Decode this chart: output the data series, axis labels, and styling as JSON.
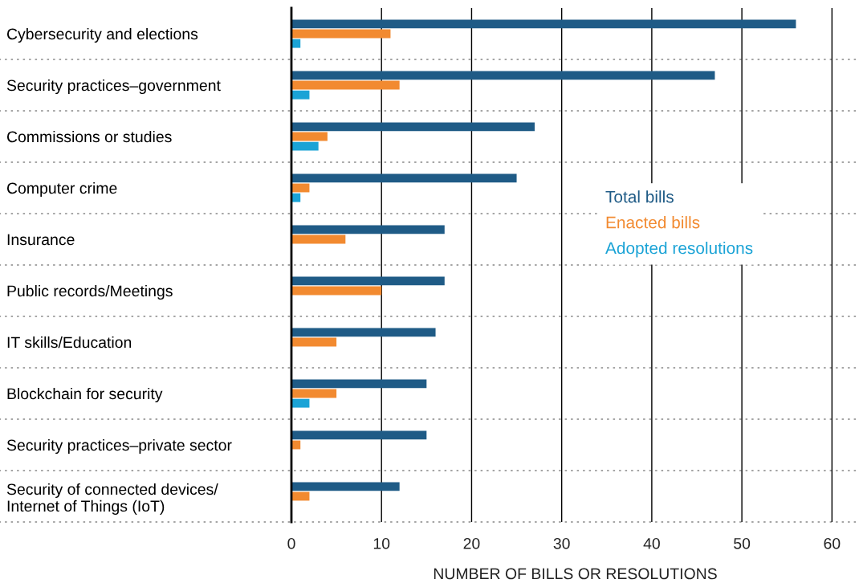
{
  "chart_data": {
    "type": "bar",
    "orientation": "horizontal",
    "categories": [
      "Cybersecurity and elections",
      "Security practices–government",
      "Commissions or studies",
      "Computer crime",
      "Insurance",
      "Public records/Meetings",
      "IT skills/Education",
      "Blockchain for security",
      "Security practices–private sector",
      "Security of connected devices/\nInternet of Things (IoT)"
    ],
    "series": [
      {
        "name": "Total bills",
        "color": "#1f5b86",
        "values": [
          56,
          47,
          27,
          25,
          17,
          17,
          16,
          15,
          15,
          12
        ]
      },
      {
        "name": "Enacted bills",
        "color": "#f28a30",
        "values": [
          11,
          12,
          4,
          2,
          6,
          10,
          5,
          5,
          1,
          2
        ]
      },
      {
        "name": "Adopted resolutions",
        "color": "#1aa3d6",
        "values": [
          1,
          2,
          3,
          1,
          null,
          null,
          null,
          2,
          null,
          null
        ]
      }
    ],
    "xlabel": "NUMBER OF BILLS OR RESOLUTIONS",
    "xlim": [
      0,
      63
    ],
    "xticks": [
      0,
      10,
      20,
      30,
      40,
      50,
      60
    ],
    "grid": "x",
    "legend": "right"
  }
}
